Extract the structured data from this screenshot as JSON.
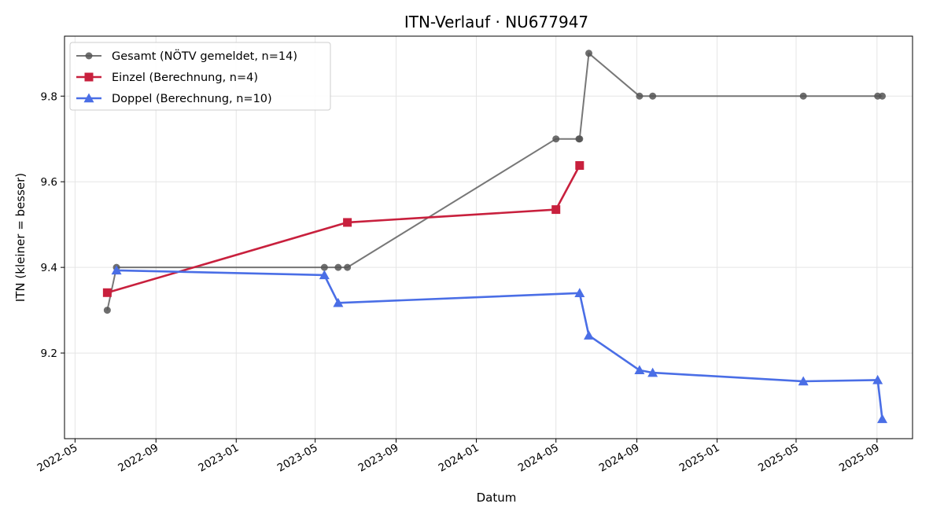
{
  "chart_data": {
    "type": "line",
    "title": "ITN-Verlauf · NU677947",
    "xlabel": "Datum",
    "ylabel": "ITN  (kleiner = besser)",
    "x_range": [
      "2022-04-15",
      "2025-10-25"
    ],
    "ylim": [
      9.0,
      9.94
    ],
    "x_ticks": [
      "2022-05",
      "2022-09",
      "2023-01",
      "2023-05",
      "2023-09",
      "2024-01",
      "2024-05",
      "2024-09",
      "2025-01",
      "2025-05",
      "2025-09"
    ],
    "y_ticks": [
      9.2,
      9.4,
      9.6,
      9.8
    ],
    "grid": true,
    "legend_position": "top-left",
    "series": [
      {
        "name": "Gesamt (NÖTV gemeldet, n=14)",
        "color": "#555555",
        "marker": "circle",
        "points": [
          {
            "x": "2022-06-19",
            "y": 9.3
          },
          {
            "x": "2022-07-03",
            "y": 9.4
          },
          {
            "x": "2023-05-15",
            "y": 9.4
          },
          {
            "x": "2023-06-05",
            "y": 9.4
          },
          {
            "x": "2023-06-19",
            "y": 9.4
          },
          {
            "x": "2024-05-01",
            "y": 9.7
          },
          {
            "x": "2024-06-05",
            "y": 9.7
          },
          {
            "x": "2024-06-06",
            "y": 9.7
          },
          {
            "x": "2024-06-20",
            "y": 9.9
          },
          {
            "x": "2024-09-05",
            "y": 9.8
          },
          {
            "x": "2024-09-25",
            "y": 9.8
          },
          {
            "x": "2025-05-12",
            "y": 9.8
          },
          {
            "x": "2025-09-02",
            "y": 9.8
          },
          {
            "x": "2025-09-09",
            "y": 9.8
          }
        ]
      },
      {
        "name": "Einzel (Berechnung, n=4)",
        "color": "#c8203d",
        "marker": "square",
        "points": [
          {
            "x": "2022-06-19",
            "y": 9.341
          },
          {
            "x": "2023-06-19",
            "y": 9.505
          },
          {
            "x": "2024-05-01",
            "y": 9.535
          },
          {
            "x": "2024-06-06",
            "y": 9.638
          }
        ]
      },
      {
        "name": "Doppel (Berechnung, n=10)",
        "color": "#4a6ee6",
        "marker": "triangle",
        "points": [
          {
            "x": "2022-07-03",
            "y": 9.393
          },
          {
            "x": "2023-05-15",
            "y": 9.382
          },
          {
            "x": "2023-06-05",
            "y": 9.317
          },
          {
            "x": "2024-06-06",
            "y": 9.34
          },
          {
            "x": "2024-06-20",
            "y": 9.241
          },
          {
            "x": "2024-09-05",
            "y": 9.16
          },
          {
            "x": "2024-09-25",
            "y": 9.154
          },
          {
            "x": "2025-05-12",
            "y": 9.134
          },
          {
            "x": "2025-09-02",
            "y": 9.137
          },
          {
            "x": "2025-09-09",
            "y": 9.046
          }
        ]
      }
    ]
  }
}
